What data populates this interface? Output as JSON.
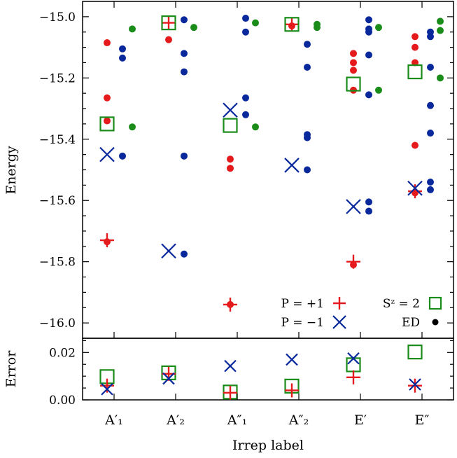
{
  "chart_data": [
    {
      "type": "scatter",
      "ylabel": "Energy",
      "ylim": [
        -16.05,
        -14.95
      ],
      "yticks": [
        -16.0,
        -15.8,
        -15.6,
        -15.4,
        -15.2,
        -15.0
      ],
      "ytick_labels": [
        "−16.0",
        "−15.8",
        "−15.6",
        "−15.4",
        "−15.2",
        "−15.0"
      ],
      "categories": [
        "A′₁",
        "A′₂",
        "A″₁",
        "A″₂",
        "E′",
        "E″"
      ],
      "legend": {
        "placement": "bottom-right",
        "entries": [
          {
            "label": "P = +1",
            "marker": "plus",
            "color": "#e41a1c"
          },
          {
            "label": "P = −1",
            "marker": "cross",
            "color": "#08289c"
          },
          {
            "label": "Sᶻ = 2",
            "marker": "square",
            "color": "#1a8c1a"
          },
          {
            "label": "ED",
            "marker": "dot",
            "color": "#000000"
          }
        ]
      },
      "series": [
        {
          "name": "P = +1",
          "marker": "plus",
          "color": "#e41a1c",
          "values": [
            -15.73,
            -15.02,
            -15.94,
            -15.025,
            -15.8,
            -15.57
          ]
        },
        {
          "name": "P = −1",
          "marker": "cross",
          "color": "#08289c",
          "values": [
            -15.45,
            -15.765,
            -15.305,
            -15.485,
            -15.62,
            -15.56
          ]
        },
        {
          "name": "Sᶻ = 2",
          "marker": "square",
          "color": "#1a8c1a",
          "values": [
            -15.35,
            -15.02,
            -15.355,
            -15.025,
            -15.22,
            -15.18
          ]
        },
        {
          "name": "ED",
          "marker": "dot",
          "points": [
            {
              "cat": 0,
              "col": 0,
              "color": "#e41a1c",
              "y": -15.085
            },
            {
              "cat": 0,
              "col": 0,
              "color": "#e41a1c",
              "y": -15.265
            },
            {
              "cat": 0,
              "col": 0,
              "color": "#e41a1c",
              "y": -15.34
            },
            {
              "cat": 0,
              "col": 0,
              "color": "#e41a1c",
              "y": -15.735
            },
            {
              "cat": 0,
              "col": 1,
              "color": "#08289c",
              "y": -15.105
            },
            {
              "cat": 0,
              "col": 1,
              "color": "#08289c",
              "y": -15.135
            },
            {
              "cat": 0,
              "col": 1,
              "color": "#08289c",
              "y": -15.455
            },
            {
              "cat": 0,
              "col": 2,
              "color": "#1a8c1a",
              "y": -15.04
            },
            {
              "cat": 0,
              "col": 2,
              "color": "#1a8c1a",
              "y": -15.36
            },
            {
              "cat": 1,
              "col": 0,
              "color": "#e41a1c",
              "y": -15.075
            },
            {
              "cat": 1,
              "col": 1,
              "color": "#08289c",
              "y": -15.01
            },
            {
              "cat": 1,
              "col": 1,
              "color": "#08289c",
              "y": -15.12
            },
            {
              "cat": 1,
              "col": 1,
              "color": "#08289c",
              "y": -15.18
            },
            {
              "cat": 1,
              "col": 1,
              "color": "#08289c",
              "y": -15.455
            },
            {
              "cat": 1,
              "col": 1,
              "color": "#08289c",
              "y": -15.775
            },
            {
              "cat": 1,
              "col": 2,
              "color": "#1a8c1a",
              "y": -15.035
            },
            {
              "cat": 2,
              "col": 0,
              "color": "#e41a1c",
              "y": -15.465
            },
            {
              "cat": 2,
              "col": 0,
              "color": "#e41a1c",
              "y": -15.495
            },
            {
              "cat": 2,
              "col": 0,
              "color": "#e41a1c",
              "y": -15.94
            },
            {
              "cat": 2,
              "col": 1,
              "color": "#08289c",
              "y": -15.005
            },
            {
              "cat": 2,
              "col": 1,
              "color": "#08289c",
              "y": -15.05
            },
            {
              "cat": 2,
              "col": 1,
              "color": "#08289c",
              "y": -15.265
            },
            {
              "cat": 2,
              "col": 1,
              "color": "#08289c",
              "y": -15.32
            },
            {
              "cat": 2,
              "col": 2,
              "color": "#1a8c1a",
              "y": -15.02
            },
            {
              "cat": 2,
              "col": 2,
              "color": "#1a8c1a",
              "y": -15.36
            },
            {
              "cat": 3,
              "col": 0,
              "color": "#e41a1c",
              "y": -15.03
            },
            {
              "cat": 3,
              "col": 1,
              "color": "#08289c",
              "y": -15.09
            },
            {
              "cat": 3,
              "col": 1,
              "color": "#08289c",
              "y": -15.165
            },
            {
              "cat": 3,
              "col": 1,
              "color": "#08289c",
              "y": -15.385
            },
            {
              "cat": 3,
              "col": 1,
              "color": "#08289c",
              "y": -15.395
            },
            {
              "cat": 3,
              "col": 1,
              "color": "#08289c",
              "y": -15.5
            },
            {
              "cat": 3,
              "col": 2,
              "color": "#1a8c1a",
              "y": -15.025
            },
            {
              "cat": 3,
              "col": 2,
              "color": "#1a8c1a",
              "y": -15.035
            },
            {
              "cat": 4,
              "col": 0,
              "color": "#e41a1c",
              "y": -15.12
            },
            {
              "cat": 4,
              "col": 0,
              "color": "#e41a1c",
              "y": -15.15
            },
            {
              "cat": 4,
              "col": 0,
              "color": "#e41a1c",
              "y": -15.175
            },
            {
              "cat": 4,
              "col": 0,
              "color": "#e41a1c",
              "y": -15.24
            },
            {
              "cat": 4,
              "col": 0,
              "color": "#e41a1c",
              "y": -15.81
            },
            {
              "cat": 4,
              "col": 1,
              "color": "#08289c",
              "y": -15.01
            },
            {
              "cat": 4,
              "col": 1,
              "color": "#08289c",
              "y": -15.04
            },
            {
              "cat": 4,
              "col": 1,
              "color": "#08289c",
              "y": -15.05
            },
            {
              "cat": 4,
              "col": 1,
              "color": "#08289c",
              "y": -15.125
            },
            {
              "cat": 4,
              "col": 1,
              "color": "#08289c",
              "y": -15.255
            },
            {
              "cat": 4,
              "col": 1,
              "color": "#08289c",
              "y": -15.605
            },
            {
              "cat": 4,
              "col": 1,
              "color": "#08289c",
              "y": -15.635
            },
            {
              "cat": 4,
              "col": 2,
              "color": "#1a8c1a",
              "y": -15.035
            },
            {
              "cat": 4,
              "col": 2,
              "color": "#1a8c1a",
              "y": -15.24
            },
            {
              "cat": 5,
              "col": 0,
              "color": "#e41a1c",
              "y": -15.065
            },
            {
              "cat": 5,
              "col": 0,
              "color": "#e41a1c",
              "y": -15.1
            },
            {
              "cat": 5,
              "col": 0,
              "color": "#e41a1c",
              "y": -15.15
            },
            {
              "cat": 5,
              "col": 0,
              "color": "#e41a1c",
              "y": -15.42
            },
            {
              "cat": 5,
              "col": 0,
              "color": "#e41a1c",
              "y": -15.575
            },
            {
              "cat": 5,
              "col": 1,
              "color": "#08289c",
              "y": -15.05
            },
            {
              "cat": 5,
              "col": 1,
              "color": "#08289c",
              "y": -15.065
            },
            {
              "cat": 5,
              "col": 1,
              "color": "#08289c",
              "y": -15.165
            },
            {
              "cat": 5,
              "col": 1,
              "color": "#08289c",
              "y": -15.29
            },
            {
              "cat": 5,
              "col": 1,
              "color": "#08289c",
              "y": -15.38
            },
            {
              "cat": 5,
              "col": 1,
              "color": "#08289c",
              "y": -15.54
            },
            {
              "cat": 5,
              "col": 1,
              "color": "#08289c",
              "y": -15.565
            },
            {
              "cat": 5,
              "col": 2,
              "color": "#1a8c1a",
              "y": -15.015
            },
            {
              "cat": 5,
              "col": 2,
              "color": "#1a8c1a",
              "y": -15.045
            },
            {
              "cat": 5,
              "col": 2,
              "color": "#1a8c1a",
              "y": -15.2
            }
          ]
        }
      ]
    },
    {
      "type": "scatter",
      "ylabel": "Error",
      "xlabel": "Irrep label",
      "ylim": [
        0.0,
        0.026
      ],
      "yticks": [
        0.0,
        0.02
      ],
      "ytick_labels": [
        "0.00",
        "0.02"
      ],
      "categories": [
        "A′₁",
        "A′₂",
        "A″₁",
        "A″₂",
        "E′",
        "E″"
      ],
      "series": [
        {
          "name": "P = +1",
          "marker": "plus",
          "color": "#e41a1c",
          "values": [
            0.006,
            0.011,
            0.003,
            0.004,
            0.0095,
            0.006
          ]
        },
        {
          "name": "P = −1",
          "marker": "cross",
          "color": "#08289c",
          "values": [
            0.0045,
            0.009,
            0.0143,
            0.017,
            0.0175,
            0.0065
          ]
        },
        {
          "name": "Sᶻ = 2",
          "marker": "square",
          "color": "#1a8c1a",
          "values": [
            0.0098,
            0.0114,
            0.0033,
            0.0058,
            0.0148,
            0.0202
          ]
        }
      ]
    }
  ]
}
